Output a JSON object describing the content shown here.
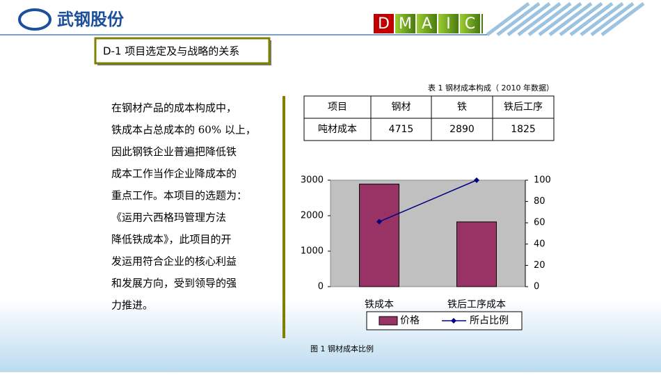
{
  "header": {
    "logo": "武钢股份",
    "dmaic": [
      "D",
      "M",
      "A",
      "I",
      "C"
    ]
  },
  "section_title": "D-1  项目选定及与战略的关系",
  "paragraph": [
    "在钢材产品的成本构成中，",
    "铁成本占总成本的 60% 以上，",
    "因此钢铁企业普遍把降低铁",
    "成本工作当作企业降成本的",
    "重点工作。本项目的选题为：",
    "《运用六西格玛管理方法",
    "降低铁成本》，此项目的开",
    "发运用符合企业的核心利益",
    "和发展方向，受到领导的强",
    "力推进。"
  ],
  "table": {
    "caption": "表 1  钢材成本构成（ 2010 年数据）",
    "header": [
      "项目",
      "钢材",
      "铁",
      "铁后工序"
    ],
    "rows": [
      [
        "吨材成本",
        4715,
        2890,
        1825
      ]
    ]
  },
  "figure_caption": "图 1  钢材成本比例",
  "chart_data": {
    "type": "bar",
    "categories": [
      "铁成本",
      "铁后工序成本"
    ],
    "series": [
      {
        "name": "价格",
        "color": "#993366",
        "values": [
          2890,
          1825
        ]
      },
      {
        "name": "所占比例",
        "type": "line",
        "axis": "y2",
        "color": "#000080",
        "values": [
          61,
          100
        ]
      }
    ],
    "ylim": [
      0,
      3000
    ],
    "yticks": [
      0,
      1000,
      2000,
      3000
    ],
    "y2lim": [
      0,
      100
    ],
    "y2ticks": [
      0,
      20,
      40,
      60,
      80,
      100
    ],
    "plot_background": "#c0c0c0",
    "legend": "bottom"
  }
}
